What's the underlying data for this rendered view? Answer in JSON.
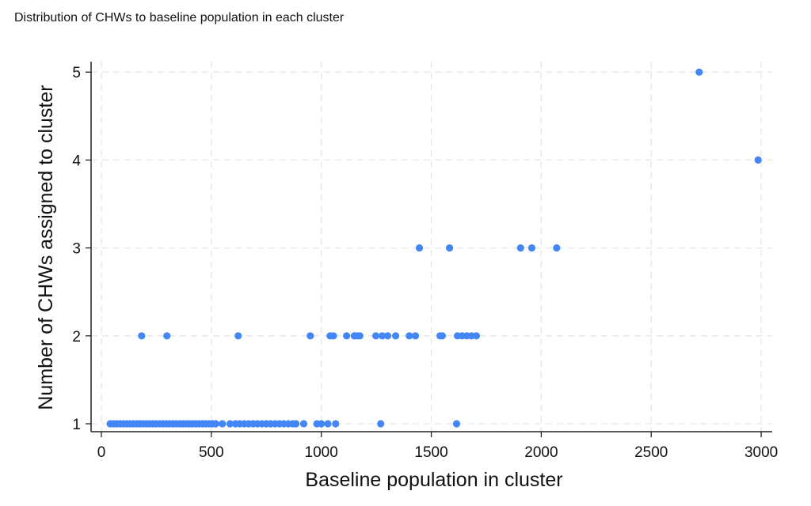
{
  "chart_data": {
    "type": "scatter",
    "title": "Distribution of CHWs to baseline population in each cluster",
    "xlabel": "Baseline population in cluster",
    "ylabel": "Number of CHWs assigned to cluster",
    "xlim": [
      0,
      3000
    ],
    "ylim": [
      1,
      5
    ],
    "xticks": [
      "0",
      "500",
      "1000",
      "1500",
      "2000",
      "2500",
      "3000"
    ],
    "yticks": [
      "1",
      "2",
      "3",
      "4",
      "5"
    ],
    "grid": true,
    "marker_color": "#4287f5",
    "points": [
      [
        40,
        1
      ],
      [
        55,
        1
      ],
      [
        70,
        1
      ],
      [
        85,
        1
      ],
      [
        100,
        1
      ],
      [
        115,
        1
      ],
      [
        130,
        1
      ],
      [
        145,
        1
      ],
      [
        160,
        1
      ],
      [
        175,
        1
      ],
      [
        190,
        1
      ],
      [
        205,
        1
      ],
      [
        220,
        1
      ],
      [
        235,
        1
      ],
      [
        250,
        1
      ],
      [
        265,
        1
      ],
      [
        280,
        1
      ],
      [
        295,
        1
      ],
      [
        310,
        1
      ],
      [
        325,
        1
      ],
      [
        340,
        1
      ],
      [
        355,
        1
      ],
      [
        370,
        1
      ],
      [
        385,
        1
      ],
      [
        400,
        1
      ],
      [
        415,
        1
      ],
      [
        430,
        1
      ],
      [
        445,
        1
      ],
      [
        460,
        1
      ],
      [
        475,
        1
      ],
      [
        490,
        1
      ],
      [
        505,
        1
      ],
      [
        520,
        1
      ],
      [
        550,
        1
      ],
      [
        585,
        1
      ],
      [
        610,
        1
      ],
      [
        630,
        1
      ],
      [
        650,
        1
      ],
      [
        670,
        1
      ],
      [
        690,
        1
      ],
      [
        710,
        1
      ],
      [
        730,
        1
      ],
      [
        750,
        1
      ],
      [
        770,
        1
      ],
      [
        790,
        1
      ],
      [
        810,
        1
      ],
      [
        830,
        1
      ],
      [
        850,
        1
      ],
      [
        870,
        1
      ],
      [
        885,
        1
      ],
      [
        920,
        1
      ],
      [
        980,
        1
      ],
      [
        1000,
        1
      ],
      [
        1030,
        1
      ],
      [
        1065,
        1
      ],
      [
        1270,
        1
      ],
      [
        1615,
        1
      ],
      [
        183,
        2
      ],
      [
        298,
        2
      ],
      [
        622,
        2
      ],
      [
        950,
        2
      ],
      [
        1040,
        2
      ],
      [
        1055,
        2
      ],
      [
        1115,
        2
      ],
      [
        1150,
        2
      ],
      [
        1162,
        2
      ],
      [
        1175,
        2
      ],
      [
        1248,
        2
      ],
      [
        1277,
        2
      ],
      [
        1302,
        2
      ],
      [
        1338,
        2
      ],
      [
        1400,
        2
      ],
      [
        1428,
        2
      ],
      [
        1540,
        2
      ],
      [
        1550,
        2
      ],
      [
        1619,
        2
      ],
      [
        1640,
        2
      ],
      [
        1662,
        2
      ],
      [
        1683,
        2
      ],
      [
        1705,
        2
      ],
      [
        1446,
        3
      ],
      [
        1583,
        3
      ],
      [
        1906,
        3
      ],
      [
        1957,
        3
      ],
      [
        2070,
        3
      ],
      [
        2986,
        4
      ],
      [
        2718,
        5
      ]
    ]
  }
}
